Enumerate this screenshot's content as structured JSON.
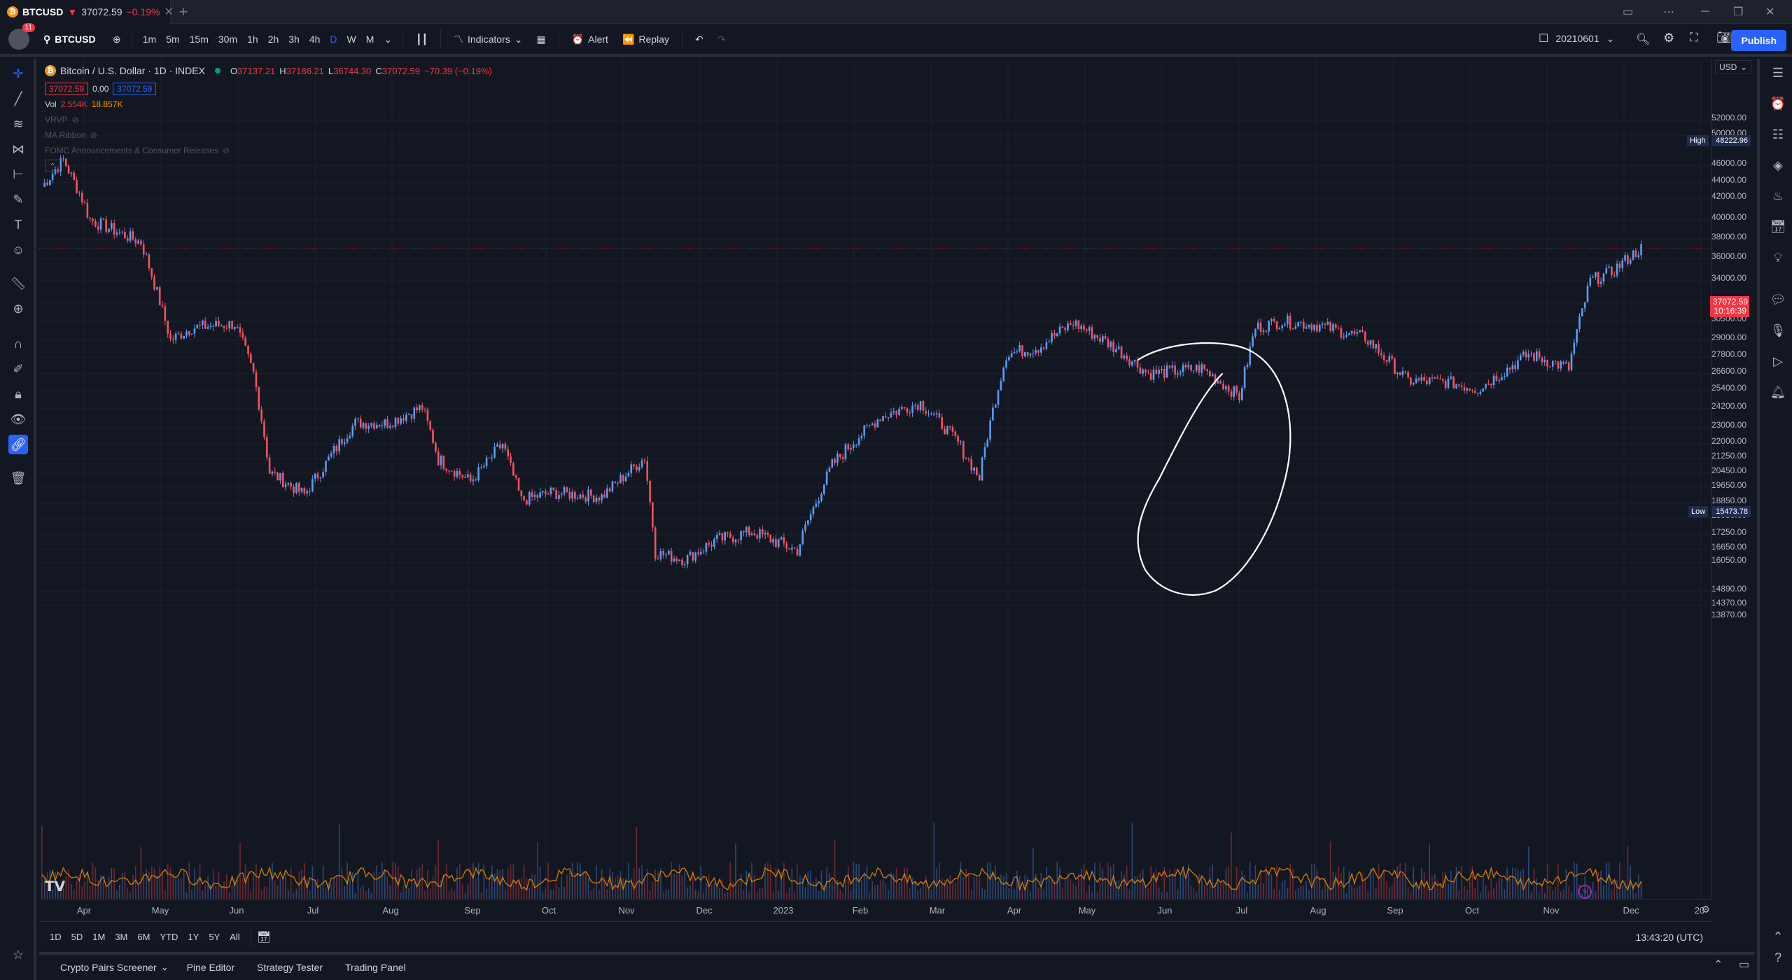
{
  "tab": {
    "coin_glyph": "₿",
    "symbol": "BTCUSD",
    "arrow": "▼",
    "price": "37072.59",
    "change": "−0.19%"
  },
  "toolbar": {
    "notification_count": "11",
    "symbol": "BTCUSD",
    "timeframes": [
      "1m",
      "5m",
      "15m",
      "30m",
      "1h",
      "2h",
      "3h",
      "4h",
      "D",
      "W",
      "M"
    ],
    "active_timeframe": "D",
    "indicators_label": "Indicators",
    "alert_label": "Alert",
    "replay_label": "Replay",
    "date_value": "20210601",
    "publish_label": "Publish"
  },
  "legend": {
    "title": "Bitcoin / U.S. Dollar · 1D · INDEX",
    "open_label": "O",
    "open": "37137.21",
    "high_label": "H",
    "high": "37186.21",
    "low_label": "L",
    "low": "36744.30",
    "close_label": "C",
    "close": "37072.59",
    "change": "−70.39 (−0.19%)",
    "bid": "37072.59",
    "spread": "0.00",
    "ask": "37072.59",
    "vol_label": "Vol",
    "vol_value": "2.554K",
    "vol_ma": "18.857K",
    "indicator_vrvp": "VRVP",
    "indicator_ma_ribbon": "MA Ribbon",
    "indicator_fomc": "FOMC Announcements & Consumer Releases"
  },
  "price_axis": {
    "currency": "USD",
    "ticks": [
      "52000.00",
      "50000.00",
      "46000.00",
      "44000.00",
      "42000.00",
      "40000.00",
      "38000.00",
      "36000.00",
      "34000.00",
      "32000.00",
      "30500.00",
      "29000.00",
      "27800.00",
      "26600.00",
      "25400.00",
      "24200.00",
      "23000.00",
      "22000.00",
      "21250.00",
      "20450.00",
      "19650.00",
      "18850.00",
      "18050.00",
      "17250.00",
      "16650.00",
      "16050.00",
      "14890.00",
      "14370.00",
      "13870.00"
    ],
    "high_label": "High",
    "high_value": "48222.96",
    "low_label": "Low",
    "low_value": "15473.78",
    "last_price": "37072.59",
    "countdown": "10:16:39"
  },
  "time_axis": {
    "labels": [
      "Apr",
      "May",
      "Jun",
      "Jul",
      "Aug",
      "Sep",
      "Oct",
      "Nov",
      "Dec",
      "2023",
      "Feb",
      "Mar",
      "Apr",
      "May",
      "Jun",
      "Jul",
      "Aug",
      "Sep",
      "Oct",
      "Nov",
      "Dec",
      "20"
    ]
  },
  "range_bar": {
    "ranges": [
      "1D",
      "5D",
      "1M",
      "3M",
      "6M",
      "YTD",
      "1Y",
      "5Y",
      "All"
    ],
    "clock": "13:43:20 (UTC)"
  },
  "bottom_panel": {
    "tabs": [
      "Crypto Pairs Screener",
      "Pine Editor",
      "Strategy Tester",
      "Trading Panel"
    ]
  },
  "colors": {
    "up": "#5b9cf6",
    "down": "#f7525f",
    "accent": "#2962ff",
    "background": "#131722",
    "vol_ma_line": "#ff9800"
  },
  "chart_data": {
    "type": "candlestick",
    "x_range": [
      "2022-03-24",
      "2023-11-15"
    ],
    "price_range_approx": [
      15473.78,
      48222.96
    ],
    "series": [
      {
        "name": "BTCUSD",
        "x": [
          "2022-03-25",
          "2022-04-02",
          "2022-04-12",
          "2022-05-01",
          "2022-05-12",
          "2022-05-20",
          "2022-06-05",
          "2022-06-12",
          "2022-06-18",
          "2022-07-01",
          "2022-07-20",
          "2022-08-01",
          "2022-08-14",
          "2022-08-20",
          "2022-09-01",
          "2022-09-13",
          "2022-09-20",
          "2022-10-01",
          "2022-10-20",
          "2022-11-05",
          "2022-11-09",
          "2022-11-20",
          "2022-12-01",
          "2022-12-15",
          "2023-01-01",
          "2023-01-14",
          "2023-02-01",
          "2023-02-16",
          "2023-03-01",
          "2023-03-10",
          "2023-03-20",
          "2023-04-01",
          "2023-04-14",
          "2023-05-01",
          "2023-05-12",
          "2023-06-01",
          "2023-06-15",
          "2023-06-21",
          "2023-07-01",
          "2023-07-14",
          "2023-08-01",
          "2023-08-17",
          "2023-09-01",
          "2023-09-12",
          "2023-10-01",
          "2023-10-16",
          "2023-10-24",
          "2023-11-01",
          "2023-11-09",
          "2023-11-12"
        ],
        "values": [
          43500,
          46800,
          40000,
          37700,
          29000,
          30000,
          30300,
          26600,
          20500,
          19300,
          23300,
          23300,
          24300,
          21200,
          20000,
          22000,
          19000,
          19400,
          19200,
          21300,
          16500,
          16200,
          17000,
          17400,
          16600,
          20900,
          23700,
          24600,
          22300,
          20200,
          28000,
          28500,
          30400,
          28300,
          26600,
          27000,
          25000,
          30000,
          30500,
          30200,
          29200,
          26100,
          26000,
          25500,
          28000,
          27000,
          34000,
          34800,
          36500,
          37072
        ]
      }
    ],
    "volume_ma": "18.857K"
  }
}
